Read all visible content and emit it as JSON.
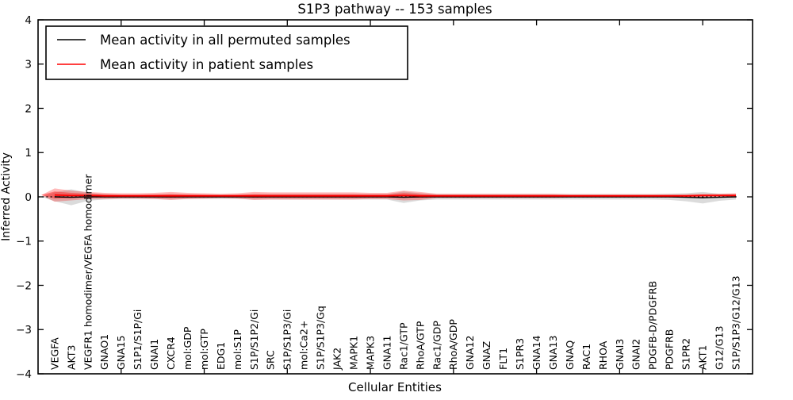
{
  "chart_data": {
    "type": "line",
    "title": "S1P3 pathway -- 153 samples",
    "xlabel": "Cellular Entities",
    "ylabel": "Inferred Activity",
    "ylim": [
      -4,
      4
    ],
    "yticks": [
      -4,
      -3,
      -2,
      -1,
      0,
      1,
      2,
      3,
      4
    ],
    "xticks_every": 5,
    "grid": false,
    "legend_position": "upper left",
    "zero_line": {
      "style": "dashed",
      "color": "#000000"
    },
    "colors": {
      "permuted": "#000000",
      "patient": "#ff0000",
      "band_gray": "#000000",
      "band_red": "#ff0000"
    },
    "categories": [
      "VEGFA",
      "AKT3",
      "VEGFR1 homodimer/VEGFA homodimer",
      "GNAO1",
      "GNA15",
      "S1P1/S1P/Gi",
      "GNAI1",
      "CXCR4",
      "mol:GDP",
      "mol:GTP",
      "EDG1",
      "mol:S1P",
      "S1P/S1P2/Gi",
      "SRC",
      "S1P/S1P3/Gi",
      "mol:Ca2+",
      "S1P/S1P3/Gq",
      "JAK2",
      "MAPK1",
      "MAPK3",
      "GNA11",
      "Rac1/GTP",
      "RhoA/GTP",
      "Rac1/GDP",
      "RhoA/GDP",
      "GNA12",
      "GNAZ",
      "FLT1",
      "S1PR3",
      "GNA14",
      "GNA13",
      "GNAQ",
      "RAC1",
      "RHOA",
      "GNAI3",
      "GNAI2",
      "PDGFB-D/PDGFRB",
      "PDGFRB",
      "S1PR2",
      "AKT1",
      "G12/G13",
      "S1P/S1P3/G12/G13"
    ],
    "series": [
      {
        "name": "Mean activity in all permuted samples",
        "color": "#000000",
        "values": [
          0,
          -0.01,
          0,
          0,
          0,
          0,
          0,
          0,
          0,
          0,
          0,
          0,
          0,
          0,
          0,
          0,
          0,
          0,
          0,
          0,
          0,
          -0.01,
          0,
          0,
          0,
          0,
          0,
          0,
          0,
          0,
          0,
          0,
          0,
          0,
          0,
          0,
          0,
          0,
          -0.01,
          -0.02,
          -0.01,
          0
        ]
      },
      {
        "name": "Mean activity in patient samples",
        "color": "#ff0000",
        "values": [
          0.04,
          0.03,
          0.03,
          0.02,
          0.02,
          0.02,
          0.02,
          0.02,
          0.02,
          0.02,
          0.02,
          0.02,
          0.02,
          0.02,
          0.02,
          0.02,
          0.02,
          0.02,
          0.02,
          0.02,
          0.02,
          0.03,
          0.02,
          0.02,
          0.02,
          0.02,
          0.02,
          0.02,
          0.02,
          0.02,
          0.02,
          0.02,
          0.02,
          0.02,
          0.02,
          0.02,
          0.02,
          0.02,
          0.02,
          0.03,
          0.03,
          0.03
        ]
      }
    ],
    "bands": [
      {
        "name": "permuted-std",
        "series": 0,
        "color": "#000000",
        "opacity": 0.14,
        "halfwidths": [
          0.1,
          0.18,
          0.09,
          0.06,
          0.05,
          0.05,
          0.05,
          0.06,
          0.05,
          0.05,
          0.05,
          0.05,
          0.06,
          0.06,
          0.06,
          0.06,
          0.06,
          0.06,
          0.06,
          0.06,
          0.06,
          0.13,
          0.08,
          0.06,
          0.06,
          0.06,
          0.06,
          0.06,
          0.06,
          0.06,
          0.06,
          0.06,
          0.06,
          0.06,
          0.06,
          0.06,
          0.06,
          0.07,
          0.09,
          0.13,
          0.08,
          0.06
        ]
      },
      {
        "name": "patient-std-outer",
        "series": 1,
        "color": "#ff0000",
        "opacity": 0.27,
        "halfwidths": [
          0.15,
          0.11,
          0.08,
          0.07,
          0.06,
          0.06,
          0.07,
          0.09,
          0.07,
          0.06,
          0.05,
          0.06,
          0.09,
          0.08,
          0.08,
          0.08,
          0.08,
          0.08,
          0.08,
          0.07,
          0.07,
          0.11,
          0.09,
          0.05,
          0.05,
          0.05,
          0.05,
          0.05,
          0.05,
          0.05,
          0.05,
          0.04,
          0.04,
          0.04,
          0.04,
          0.04,
          0.04,
          0.04,
          0.04,
          0.04,
          0.04,
          0.05
        ]
      },
      {
        "name": "patient-std-inner",
        "series": 1,
        "color": "#ff0000",
        "opacity": 0.38,
        "halfwidths": [
          0.08,
          0.06,
          0.04,
          0.035,
          0.03,
          0.03,
          0.035,
          0.045,
          0.035,
          0.03,
          0.025,
          0.03,
          0.045,
          0.04,
          0.04,
          0.04,
          0.04,
          0.04,
          0.04,
          0.035,
          0.035,
          0.055,
          0.045,
          0.025,
          0.025,
          0.025,
          0.025,
          0.025,
          0.025,
          0.025,
          0.025,
          0.02,
          0.02,
          0.02,
          0.02,
          0.02,
          0.02,
          0.02,
          0.02,
          0.02,
          0.02,
          0.025
        ]
      }
    ],
    "legend": {
      "entries": [
        {
          "label": "Mean activity in all permuted samples",
          "color": "#000000"
        },
        {
          "label": "Mean activity in patient samples",
          "color": "#ff0000"
        }
      ]
    }
  }
}
